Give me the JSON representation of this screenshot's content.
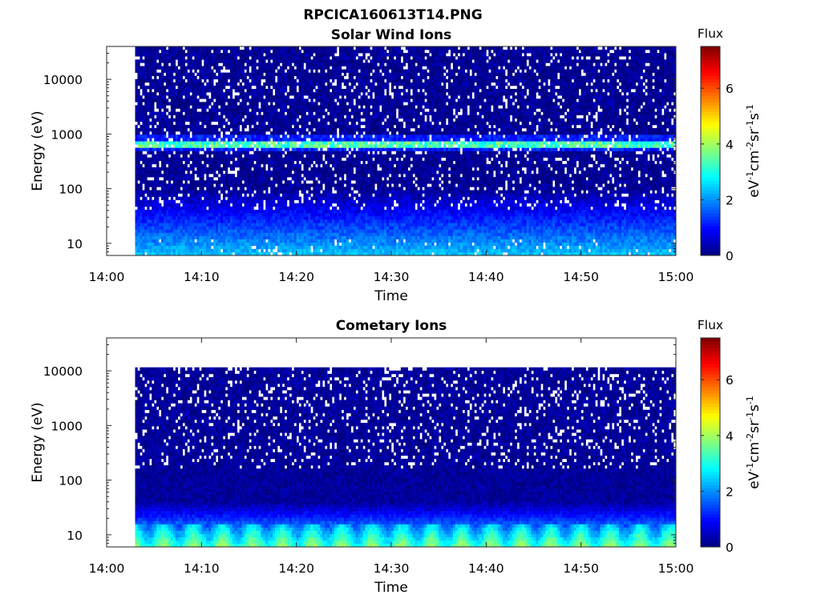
{
  "figure": {
    "title": "RPCICA160613T14.PNG"
  },
  "chart_data": [
    {
      "type": "heatmap",
      "title": "Solar Wind Ions",
      "xlabel": "Time",
      "ylabel": "Energy (eV)",
      "x_tick_labels": [
        "14:00",
        "14:10",
        "14:20",
        "14:30",
        "14:40",
        "14:50",
        "15:00"
      ],
      "x_range": [
        "14:00",
        "15:00"
      ],
      "data_start": "14:03",
      "data_end": "15:00",
      "y_scale": "log",
      "y_range": [
        6,
        40000
      ],
      "y_ticks": [
        10,
        100,
        1000,
        10000
      ],
      "y_tick_labels": [
        "10",
        "100",
        "1000",
        "10000"
      ],
      "colorbar": {
        "title": "Flux",
        "label": "eV^-1 cm^-2 sr^-1 s^-1",
        "range": [
          0,
          7.5
        ],
        "ticks": [
          0,
          2,
          4,
          6
        ],
        "tick_labels": [
          "0",
          "2",
          "4",
          "6"
        ],
        "colormap": "jet"
      },
      "description_points": [
        {
          "energy_eV": 650,
          "flux": 3.5,
          "note": "peak band at ~650 eV"
        },
        {
          "energy_eV": 10,
          "flux": 2.5,
          "note": "low-energy background"
        }
      ]
    },
    {
      "type": "heatmap",
      "title": "Cometary Ions",
      "xlabel": "Time",
      "ylabel": "Energy (eV)",
      "x_tick_labels": [
        "14:00",
        "14:10",
        "14:20",
        "14:30",
        "14:40",
        "14:50",
        "15:00"
      ],
      "x_range": [
        "14:00",
        "15:00"
      ],
      "data_start": "14:03",
      "data_end": "15:00",
      "y_scale": "log",
      "y_range": [
        6,
        40000
      ],
      "y_ticks": [
        10,
        100,
        1000,
        10000
      ],
      "y_tick_labels": [
        "10",
        "100",
        "1000",
        "10000"
      ],
      "colorbar": {
        "title": "Flux",
        "label": "eV^-1 cm^-2 sr^-1 s^-1",
        "range": [
          0,
          7.5
        ],
        "ticks": [
          0,
          2,
          4,
          6
        ],
        "tick_labels": [
          "0",
          "2",
          "4",
          "6"
        ],
        "colormap": "jet"
      },
      "description_points": [
        {
          "energy_eV": 10,
          "flux": 3.2,
          "note": "strongest flux at lowest energies"
        },
        {
          "energy_eV": 11000,
          "flux": 0.3,
          "note": "upper data cutoff"
        }
      ]
    }
  ]
}
